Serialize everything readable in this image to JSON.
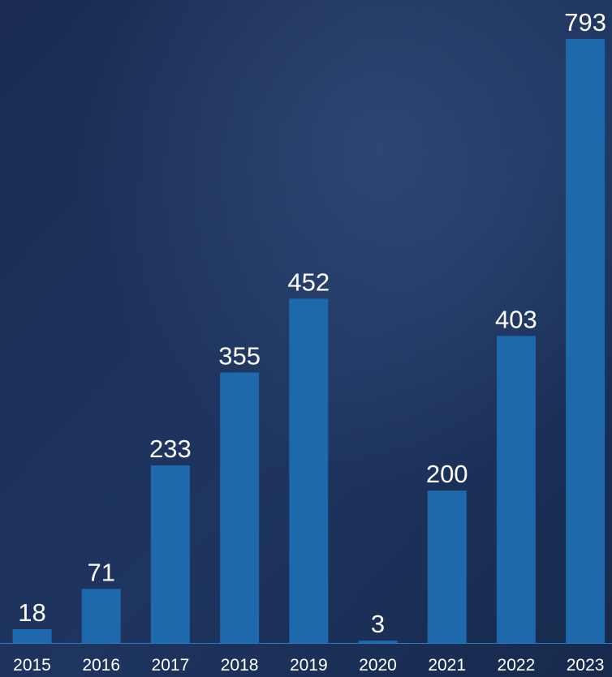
{
  "chart_data": {
    "type": "bar",
    "categories": [
      "2015",
      "2016",
      "2017",
      "2018",
      "2019",
      "2020",
      "2021",
      "2022",
      "2023"
    ],
    "values": [
      18,
      71,
      233,
      355,
      452,
      3,
      200,
      403,
      793
    ],
    "title": "",
    "xlabel": "",
    "ylabel": "",
    "ylim": [
      0,
      793
    ],
    "grid": false,
    "legend": "none",
    "data_labels": true,
    "colors": {
      "background_top": "#1a2c52",
      "background_bottom": "#172a4d",
      "bar": "#1d69ab",
      "baseline": "#2e7cc0",
      "text": "#ffffff"
    }
  }
}
